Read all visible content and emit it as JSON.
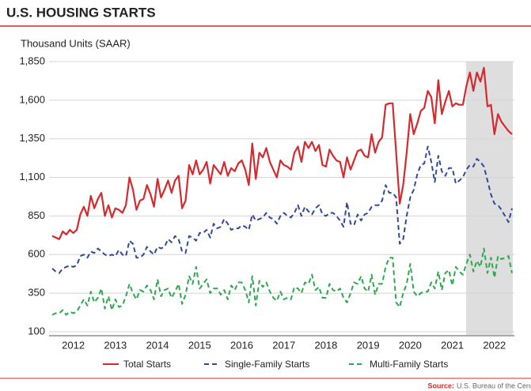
{
  "chart_data": {
    "type": "line",
    "title": "U.S. HOUSING STARTS",
    "y_label": "Thousand Units (SAAR)",
    "source_label": "Source:",
    "source": "U.S. Bureau of the Cens",
    "categories": [
      null,
      null,
      null,
      null,
      null,
      null,
      "2012",
      null,
      null,
      null,
      null,
      null,
      null,
      null,
      null,
      null,
      null,
      null,
      "2013",
      null,
      null,
      null,
      null,
      null,
      null,
      null,
      null,
      null,
      null,
      null,
      "2014",
      null,
      null,
      null,
      null,
      null,
      null,
      null,
      null,
      null,
      null,
      null,
      "2015",
      null,
      null,
      null,
      null,
      null,
      null,
      null,
      null,
      null,
      null,
      null,
      "2016",
      null,
      null,
      null,
      null,
      null,
      null,
      null,
      null,
      null,
      null,
      null,
      "2017",
      null,
      null,
      null,
      null,
      null,
      null,
      null,
      null,
      null,
      null,
      null,
      "2018",
      null,
      null,
      null,
      null,
      null,
      null,
      null,
      null,
      null,
      null,
      null,
      "2019",
      null,
      null,
      null,
      null,
      null,
      null,
      null,
      null,
      null,
      null,
      null,
      "2020",
      null,
      null,
      null,
      null,
      null,
      null,
      null,
      null,
      null,
      null,
      null,
      "2021",
      null,
      null,
      null,
      null,
      null,
      null,
      null,
      null,
      null,
      null,
      null,
      "2022",
      null,
      null,
      null,
      null,
      null
    ],
    "series": [
      {
        "name": "Total Starts",
        "color": "#d42a2e",
        "dash": "solid",
        "values": [
          720,
          710,
          700,
          750,
          730,
          760,
          740,
          760,
          860,
          910,
          850,
          980,
          900,
          960,
          1000,
          850,
          920,
          840,
          900,
          890,
          870,
          920,
          1100,
          1020,
          890,
          950,
          960,
          1050,
          990,
          910,
          1090,
          970,
          1020,
          1080,
          1000,
          1080,
          1110,
          900,
          950,
          1180,
          1120,
          1210,
          1120,
          1150,
          1200,
          1060,
          1180,
          1150,
          1120,
          1200,
          1110,
          1160,
          1140,
          1190,
          1210,
          1150,
          1050,
          1320,
          1090,
          1260,
          1230,
          1290,
          1200,
          1150,
          1100,
          1210,
          1180,
          1170,
          1150,
          1260,
          1300,
          1200,
          1330,
          1290,
          1330,
          1270,
          1310,
          1180,
          1170,
          1280,
          1240,
          1210,
          1200,
          1100,
          1230,
          1150,
          1210,
          1270,
          1280,
          1240,
          1230,
          1380,
          1260,
          1330,
          1360,
          1570,
          1580,
          1580,
          1260,
          930,
          1050,
          1260,
          1510,
          1380,
          1450,
          1530,
          1550,
          1660,
          1620,
          1450,
          1730,
          1510,
          1590,
          1660,
          1560,
          1580,
          1570,
          1570,
          1690,
          1780,
          1660,
          1780,
          1720,
          1810,
          1560,
          1570,
          1380,
          1510,
          1460,
          1430,
          1400,
          1380
        ]
      },
      {
        "name": "Single-Family Starts",
        "color": "#2e4a99",
        "dash": "dashed",
        "values": [
          510,
          490,
          480,
          510,
          520,
          530,
          520,
          530,
          590,
          600,
          580,
          620,
          610,
          640,
          620,
          600,
          590,
          600,
          590,
          630,
          600,
          590,
          690,
          670,
          580,
          580,
          600,
          650,
          620,
          600,
          650,
          640,
          650,
          700,
          680,
          720,
          700,
          620,
          610,
          720,
          710,
          690,
          740,
          740,
          760,
          710,
          800,
          770,
          780,
          830,
          800,
          760,
          770,
          770,
          790,
          780,
          760,
          860,
          820,
          830,
          840,
          870,
          840,
          830,
          800,
          850,
          870,
          850,
          840,
          870,
          920,
          850,
          910,
          880,
          860,
          900,
          920,
          860,
          850,
          870,
          870,
          850,
          820,
          780,
          940,
          800,
          790,
          860,
          820,
          860,
          870,
          910,
          920,
          920,
          950,
          1050,
          1000,
          1000,
          970,
          670,
          700,
          850,
          970,
          1020,
          1120,
          1180,
          1190,
          1300,
          1200,
          1070,
          1240,
          1140,
          1110,
          1160,
          1160,
          1060,
          1080,
          1100,
          1150,
          1180,
          1170,
          1220,
          1200,
          1170,
          1080,
          990,
          930,
          920,
          890,
          850,
          810,
          900
        ]
      },
      {
        "name": "Multi-Family Starts",
        "color": "#2ea84e",
        "dash": "dashed",
        "values": [
          210,
          220,
          220,
          240,
          210,
          230,
          220,
          230,
          270,
          310,
          270,
          360,
          290,
          320,
          380,
          250,
          330,
          240,
          310,
          260,
          270,
          330,
          410,
          350,
          310,
          370,
          360,
          400,
          370,
          310,
          440,
          330,
          370,
          380,
          320,
          360,
          410,
          280,
          340,
          460,
          410,
          520,
          380,
          410,
          440,
          350,
          380,
          380,
          340,
          370,
          310,
          400,
          370,
          420,
          420,
          370,
          290,
          460,
          270,
          430,
          390,
          420,
          360,
          320,
          300,
          360,
          310,
          320,
          310,
          390,
          380,
          350,
          420,
          410,
          470,
          370,
          390,
          320,
          320,
          410,
          370,
          360,
          380,
          320,
          290,
          350,
          420,
          410,
          460,
          380,
          360,
          470,
          340,
          410,
          410,
          520,
          580,
          580,
          290,
          260,
          350,
          410,
          540,
          360,
          330,
          350,
          360,
          360,
          420,
          380,
          490,
          370,
          480,
          500,
          400,
          520,
          490,
          470,
          540,
          600,
          490,
          560,
          520,
          640,
          480,
          580,
          450,
          590,
          570,
          580,
          590,
          480
        ]
      }
    ],
    "ylim": [
      100,
      1850
    ],
    "yticks": [
      100,
      350,
      600,
      850,
      {
        "value": 1100,
        "label": "1,100"
      },
      {
        "value": 1350,
        "label": "1,350"
      },
      {
        "value": 1600,
        "label": "1,600"
      },
      {
        "value": 1850,
        "label": "1,850"
      }
    ],
    "grid": true
  }
}
